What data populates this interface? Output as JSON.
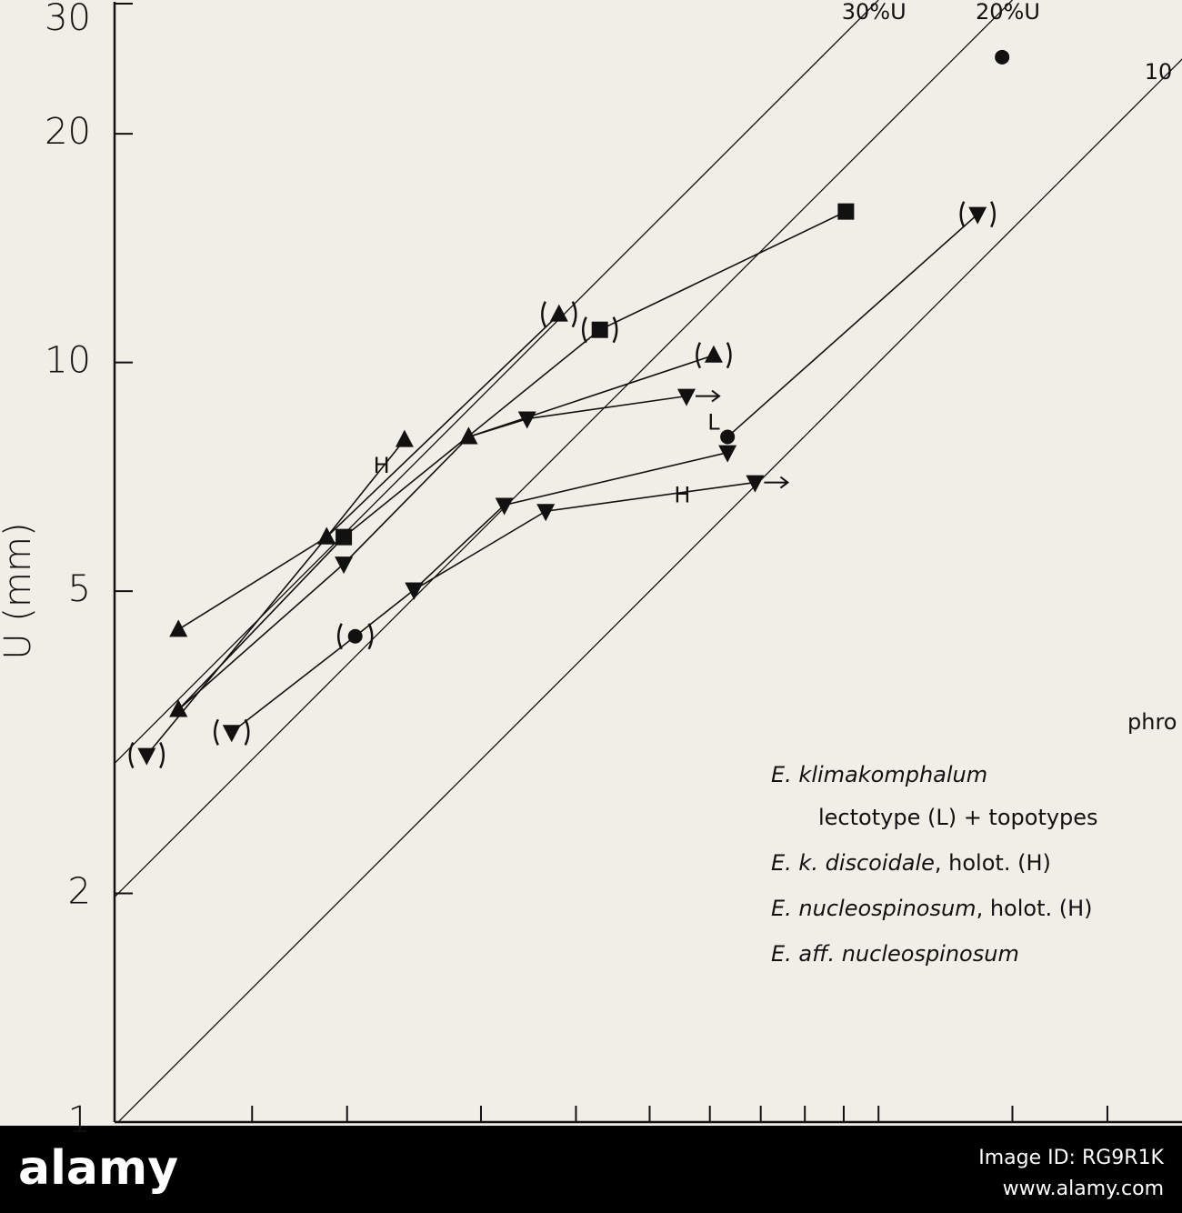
{
  "chart_data": {
    "type": "line",
    "y_label": "U (mm)",
    "xscale": "log",
    "yscale": "log",
    "xlim": [
      1,
      25
    ],
    "ylim": [
      1,
      30
    ],
    "xticks": [
      1.5,
      2,
      3,
      4,
      5,
      6,
      7,
      8,
      9,
      10,
      15,
      20
    ],
    "yticks": [
      1,
      2,
      5,
      10,
      20,
      30
    ],
    "color": "#111111",
    "reference_lines": [
      {
        "label": "30%U",
        "k": 3
      },
      {
        "label": "20%U",
        "k": 2
      },
      {
        "label": "10",
        "k": 1
      }
    ],
    "series": [
      {
        "markers": [
          "up",
          "up",
          "up-paren"
        ],
        "x": [
          1.2,
          1.88,
          3.8
        ],
        "y": [
          4.45,
          5.89,
          11.57
        ]
      },
      {
        "markers": [
          "up",
          "square",
          "square-paren",
          "square"
        ],
        "x": [
          1.2,
          1.98,
          4.3,
          9.06
        ],
        "y": [
          3.49,
          5.89,
          11.04,
          15.8
        ]
      },
      {
        "markers": [
          "up",
          "down",
          "up",
          "up-paren"
        ],
        "x": [
          1.2,
          1.98,
          2.89,
          6.07
        ],
        "y": [
          3.49,
          5.43,
          7.98,
          10.22
        ]
      },
      {
        "markers": [
          "down-paren",
          "up",
          "up"
        ],
        "x": [
          1.09,
          1.88,
          2.38
        ],
        "y": [
          3.04,
          5.89,
          7.91
        ]
      },
      {
        "markers": [
          "down-paren",
          "circle-paren",
          "down",
          "down",
          "down"
        ],
        "x": [
          1.41,
          2.05,
          2.45,
          3.22,
          6.33
        ],
        "y": [
          3.26,
          4.36,
          5.02,
          6.49,
          7.61
        ]
      },
      {
        "markers": [
          "up",
          "down",
          "down-arrow"
        ],
        "x": [
          2.89,
          3.45,
          5.59
        ],
        "y": [
          7.98,
          8.43,
          9.03
        ]
      },
      {
        "markers": [
          "circle",
          "down-paren"
        ],
        "x": [
          6.33,
          13.5
        ],
        "y": [
          7.98,
          15.67
        ]
      },
      {
        "markers": [
          "down",
          "down",
          "down-arrow"
        ],
        "x": [
          2.45,
          3.65,
          6.88
        ],
        "y": [
          5.02,
          6.37,
          6.95
        ]
      },
      {
        "markers": [
          "circle"
        ],
        "x": [
          14.54
        ],
        "y": [
          25.23
        ]
      }
    ],
    "annotations": [
      {
        "text": "L",
        "x": 6.07,
        "y": 8.32
      },
      {
        "text": "H",
        "x": 2.22,
        "y": 7.3
      },
      {
        "text": "H",
        "x": 5.52,
        "y": 6.67
      }
    ],
    "partial_text": "phro",
    "legend": [
      {
        "italic": "E. klimakomphalum"
      },
      {
        "text": "lectotype (L) + topotypes"
      },
      {
        "italic": "E. k. discoidale",
        "text": ", holot. (H)"
      },
      {
        "italic": "E. nucleospinosum",
        "text": ", holot. (H)"
      },
      {
        "italic": "E. aff. nucleospinosum"
      }
    ]
  },
  "watermark": {
    "logo": "alamy",
    "image_id": "Image ID: RG9R1K",
    "url": "www.alamy.com"
  }
}
